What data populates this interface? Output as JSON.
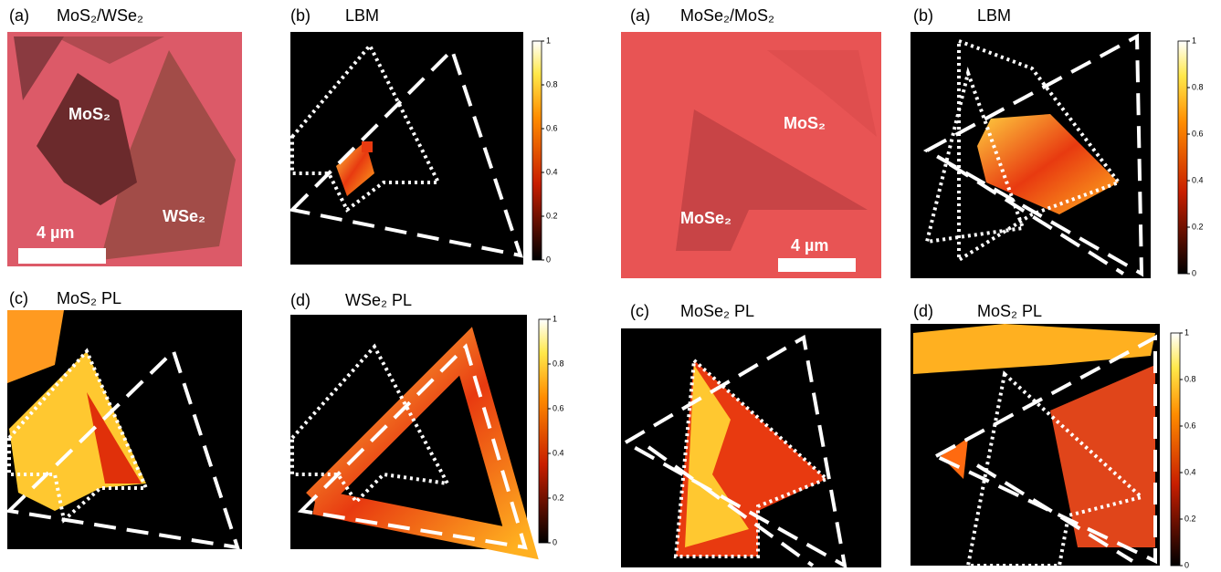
{
  "figure_left": {
    "panels": [
      {
        "label": "(a)",
        "title": "MoS₂/WSe₂",
        "annotations": [
          "MoS₂",
          "WSe₂"
        ],
        "scale_bar": "4 µm"
      },
      {
        "label": "(b)",
        "title": "LBM",
        "colorbar": {
          "ticks": [
            0,
            0.2,
            0.4,
            0.6,
            0.8,
            1
          ]
        }
      },
      {
        "label": "(c)",
        "title": "MoS₂ PL"
      },
      {
        "label": "(d)",
        "title": "WSe₂ PL",
        "colorbar": {
          "ticks": [
            0,
            0.2,
            0.4,
            0.6,
            0.8,
            1
          ]
        }
      }
    ]
  },
  "figure_right": {
    "panels": [
      {
        "label": "(a)",
        "title": "MoSe₂/MoS₂",
        "annotations": [
          "MoS₂",
          "MoSe₂"
        ],
        "scale_bar": "4 µm"
      },
      {
        "label": "(b)",
        "title": "LBM",
        "colorbar": {
          "ticks": [
            0,
            0.2,
            0.4,
            0.6,
            0.8,
            1
          ]
        }
      },
      {
        "label": "(c)",
        "title": "MoSe₂ PL"
      },
      {
        "label": "(d)",
        "title": "MoS₂ PL",
        "colorbar": {
          "ticks": [
            0,
            0.2,
            0.4,
            0.6,
            0.8,
            1
          ]
        }
      }
    ]
  }
}
